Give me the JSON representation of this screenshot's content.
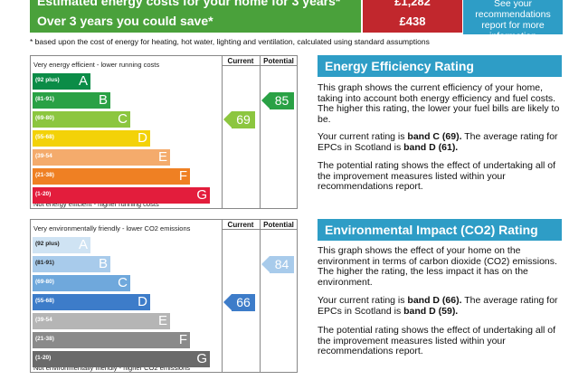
{
  "top": {
    "row1_label": "Estimated energy costs for your home for 3 years*",
    "row1_value": "£1,282",
    "row2_label": "Over 3 years you could save*",
    "row2_value": "£438",
    "recommendations_box": "See your recommendations report for more information",
    "footnote": "* based upon the cost of energy for heating, hot water, lighting and ventilation, calculated using standard assumptions"
  },
  "energy_chart": {
    "caption_top": "Very energy efficient - lower running costs",
    "caption_bottom": "Not energy efficient - higher running costs",
    "col_current": "Current",
    "col_potential": "Potential",
    "bands": [
      {
        "range": "(92 plus)",
        "letter": "A",
        "color": "#0b8c47"
      },
      {
        "range": "(81-91)",
        "letter": "B",
        "color": "#2aa145"
      },
      {
        "range": "(69-80)",
        "letter": "C",
        "color": "#8cc63f"
      },
      {
        "range": "(55-68)",
        "letter": "D",
        "color": "#f3d208"
      },
      {
        "range": "(39-54",
        "letter": "E",
        "color": "#f4ab6c"
      },
      {
        "range": "(21-38)",
        "letter": "F",
        "color": "#ef8023"
      },
      {
        "range": "(1-20)",
        "letter": "G",
        "color": "#e31d3c"
      }
    ],
    "current": {
      "value": "69",
      "band": "C",
      "color": "#8cc63f"
    },
    "potential": {
      "value": "85",
      "band": "B",
      "color": "#2aa145"
    }
  },
  "env_chart": {
    "caption_top": "Very environmentally friendly - lower CO2 emissions",
    "caption_bottom": "Not environmentally friendly - higher CO2 emissions",
    "col_current": "Current",
    "col_potential": "Potential",
    "bands": [
      {
        "range": "(92 plus)",
        "letter": "A",
        "color": "#cfe3f3"
      },
      {
        "range": "(81-91)",
        "letter": "B",
        "color": "#a8cbeb"
      },
      {
        "range": "(69-80)",
        "letter": "C",
        "color": "#6fa8dc"
      },
      {
        "range": "(55-68)",
        "letter": "D",
        "color": "#3d7cc9"
      },
      {
        "range": "(39-54",
        "letter": "E",
        "color": "#b5b5b5"
      },
      {
        "range": "(21-38)",
        "letter": "F",
        "color": "#8a8a8a"
      },
      {
        "range": "(1-20)",
        "letter": "G",
        "color": "#6a6a6a"
      }
    ],
    "current": {
      "value": "66",
      "band": "D",
      "color": "#3d7cc9"
    },
    "potential": {
      "value": "84",
      "band": "B",
      "color": "#a8cbeb"
    }
  },
  "eer_panel": {
    "title": "Energy Efficiency Rating",
    "p1": "This graph shows the current efficiency of your home, taking into account both energy efficiency and fuel costs. The higher this rating, the lower your fuel bills are likely to be.",
    "p2_a": "Your current rating is ",
    "p2_b": "band C (69).",
    "p2_c": " The average rating for EPCs in Scotland is ",
    "p2_d": "band D (61).",
    "p3": "The potential rating shows the effect of undertaking all of the improvement measures listed within your recommendations report."
  },
  "eir_panel": {
    "title": "Environmental Impact (CO2) Rating",
    "p1": "This graph shows the effect of your home on the environment in terms of carbon dioxide (CO2) emissions. The higher the rating, the less impact it has on the environment.",
    "p2_a": "Your current rating is ",
    "p2_b": "band D (66).",
    "p2_c": " The average rating for EPCs in Scotland is ",
    "p2_d": "band D (59).",
    "p3": "The potential rating shows the effect of undertaking all of the improvement measures listed within your recommendations report."
  }
}
